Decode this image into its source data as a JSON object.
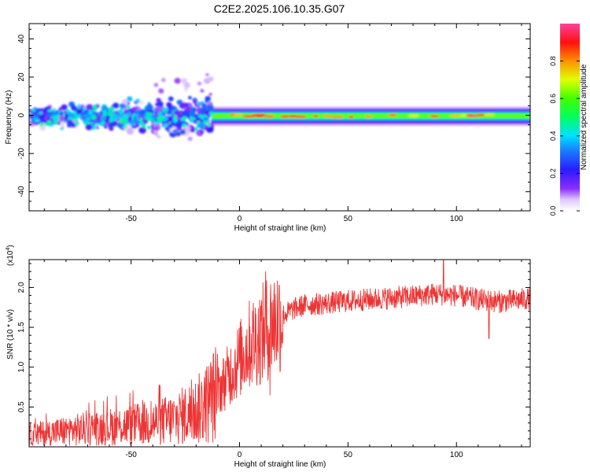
{
  "title": "C2E2.2025.106.10.35.G07",
  "chart_data": [
    {
      "type": "heatmap",
      "xlabel": "Height of straight line (km)",
      "ylabel": "Frequency (Hz)",
      "xlim": [
        -97,
        134
      ],
      "ylim": [
        -50,
        48
      ],
      "xticks": [
        -50,
        0,
        50,
        100
      ],
      "yticks": [
        -40,
        -20,
        0,
        20,
        40
      ],
      "grid": false,
      "colorbar": {
        "label": "Normalized spectral amplitude",
        "range": [
          0,
          1
        ],
        "ticks": [
          0.0,
          0.2,
          0.4,
          0.6,
          0.8
        ]
      },
      "regions": [
        {
          "x_range": [
            -97,
            -13
          ],
          "freq_range": [
            -15,
            23
          ],
          "description_level": "scattered low-to-mid amplitude blobs"
        },
        {
          "x_range": [
            -13,
            134
          ],
          "freq_range": [
            -3,
            2
          ],
          "description_level": "continuous high-amplitude band centered near 0 Hz"
        }
      ]
    },
    {
      "type": "line",
      "xlabel": "Height of straight line (km)",
      "ylabel": "SNR (10 * v/v)",
      "yscale_label": "(x10",
      "yscale_exp": "4",
      "xlim": [
        -97,
        134
      ],
      "ylim": [
        0,
        23500
      ],
      "xticks": [
        -50,
        0,
        50,
        100
      ],
      "yticks": [
        5000,
        10000,
        15000,
        20000
      ],
      "ytick_labels": [
        "0.5",
        "1.0",
        "1.5",
        "2.0"
      ],
      "color": "#ee3333",
      "trend": {
        "x": [
          -97,
          -80,
          -60,
          -40,
          -30,
          -20,
          -15,
          -10,
          -5,
          0,
          5,
          10,
          15,
          20,
          25,
          30,
          40,
          50,
          60,
          70,
          80,
          90,
          100,
          110,
          120,
          134
        ],
        "y": [
          1500,
          2000,
          2500,
          3000,
          3500,
          4500,
          5500,
          7000,
          9000,
          11000,
          13000,
          14000,
          15500,
          16500,
          17300,
          17800,
          18000,
          18300,
          18500,
          18700,
          18900,
          19200,
          19000,
          18500,
          18200,
          18600
        ]
      },
      "notable_points": [
        {
          "x": 12,
          "y": 22000
        },
        {
          "x": 94,
          "y": 23500
        },
        {
          "x": 115,
          "y": 13600
        },
        {
          "x": 14,
          "y": 6500
        }
      ]
    }
  ]
}
